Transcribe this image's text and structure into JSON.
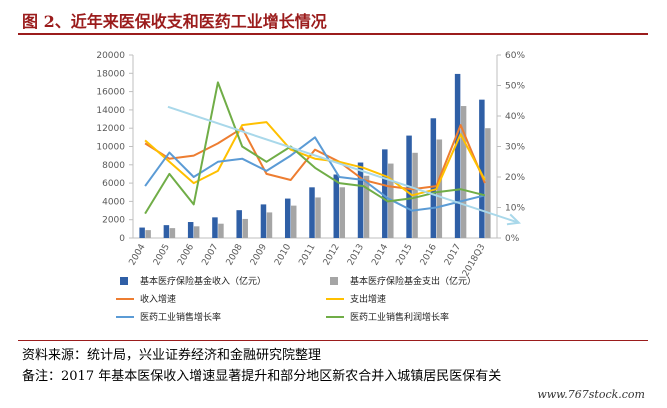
{
  "title": "图 2、近年来医保收支和医药工业增长情况",
  "source": "资料来源：统计局，兴业证券经济和金融研究院整理",
  "note": "备注：2017 年基本医保收入增速显著提升和部分地区新农合并入城镇居民医保有关",
  "watermark": "www.767stock.com",
  "chart_data": {
    "type": "bar",
    "categories": [
      "2004",
      "2005",
      "2006",
      "2007",
      "2008",
      "2009",
      "2010",
      "2011",
      "2012",
      "2013",
      "2014",
      "2015",
      "2016",
      "2017",
      "2018Q3"
    ],
    "left_axis": {
      "min": 0,
      "max": 20000,
      "step": 2000,
      "ticks": [
        "0",
        "2000",
        "4000",
        "6000",
        "8000",
        "10000",
        "12000",
        "14000",
        "16000",
        "18000",
        "20000"
      ]
    },
    "right_axis": {
      "min": 0,
      "max": 0.6,
      "step": 0.1,
      "ticks": [
        "0%",
        "10%",
        "20%",
        "30%",
        "40%",
        "50%",
        "60%"
      ]
    },
    "bar_series": [
      {
        "name": "基本医疗保险基金收入（亿元）",
        "color": "#2f5fa6",
        "values": [
          1141,
          1405,
          1747,
          2257,
          3040,
          3672,
          4309,
          5539,
          6939,
          8248,
          9687,
          11193,
          13084,
          17932,
          15120
        ]
      },
      {
        "name": "基本医疗保险基金支出（亿元）",
        "color": "#a5a5a5",
        "values": [
          862,
          1079,
          1277,
          1562,
          2084,
          2797,
          3538,
          4431,
          5544,
          6801,
          8134,
          9312,
          10767,
          14422,
          12000
        ]
      }
    ],
    "line_series": [
      {
        "name": "收入增速",
        "color": "#ed7d31",
        "values": [
          0.31,
          0.26,
          0.27,
          0.31,
          0.36,
          0.21,
          0.19,
          0.29,
          0.25,
          0.19,
          0.17,
          0.16,
          0.17,
          0.37,
          0.18
        ]
      },
      {
        "name": "支出增速",
        "color": "#ffc000",
        "values": [
          0.32,
          0.25,
          0.18,
          0.22,
          0.37,
          0.38,
          0.29,
          0.26,
          0.25,
          0.23,
          0.2,
          0.14,
          0.16,
          0.34,
          0.19
        ]
      },
      {
        "name": "医药工业销售增长率",
        "color": "#5b9bd5",
        "values": [
          0.17,
          0.28,
          0.2,
          0.25,
          0.26,
          0.22,
          0.27,
          0.33,
          0.2,
          0.19,
          0.13,
          0.09,
          0.1,
          0.12,
          0.14
        ]
      },
      {
        "name": "医药工业销售利润增长率",
        "color": "#70ad47",
        "values": [
          0.08,
          0.21,
          0.11,
          0.51,
          0.3,
          0.25,
          0.3,
          0.23,
          0.18,
          0.17,
          0.12,
          0.13,
          0.15,
          0.16,
          0.14
        ]
      }
    ],
    "trend_arrow": {
      "color": "#a9d8ea",
      "from": [
        0.94,
        0.43
      ],
      "to": [
        15.4,
        0.05
      ]
    },
    "legend_position": "bottom",
    "grid": false
  }
}
